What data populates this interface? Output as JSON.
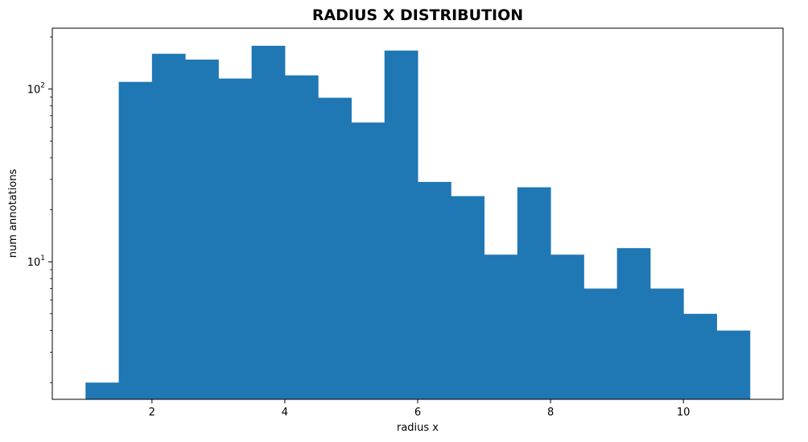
{
  "chart_data": {
    "type": "bar",
    "title": "RADIUS X DISTRIBUTION",
    "xlabel": "radius x",
    "ylabel": "num annotations",
    "yscale": "log",
    "grid": false,
    "bar_color": "#1f77b4",
    "bins": [
      {
        "x0": 1.0,
        "x1": 1.5,
        "value": 2
      },
      {
        "x0": 1.5,
        "x1": 2.0,
        "value": 110
      },
      {
        "x0": 2.0,
        "x1": 2.5,
        "value": 160
      },
      {
        "x0": 2.5,
        "x1": 3.0,
        "value": 148
      },
      {
        "x0": 3.0,
        "x1": 3.5,
        "value": 115
      },
      {
        "x0": 3.5,
        "x1": 4.0,
        "value": 178
      },
      {
        "x0": 4.0,
        "x1": 4.5,
        "value": 120
      },
      {
        "x0": 4.5,
        "x1": 5.0,
        "value": 89
      },
      {
        "x0": 5.0,
        "x1": 5.5,
        "value": 64
      },
      {
        "x0": 5.5,
        "x1": 6.0,
        "value": 167
      },
      {
        "x0": 6.0,
        "x1": 6.5,
        "value": 29
      },
      {
        "x0": 6.5,
        "x1": 7.0,
        "value": 24
      },
      {
        "x0": 7.0,
        "x1": 7.5,
        "value": 11
      },
      {
        "x0": 7.5,
        "x1": 8.0,
        "value": 27
      },
      {
        "x0": 8.0,
        "x1": 8.5,
        "value": 11
      },
      {
        "x0": 8.5,
        "x1": 9.0,
        "value": 7
      },
      {
        "x0": 9.0,
        "x1": 9.5,
        "value": 12
      },
      {
        "x0": 9.5,
        "x1": 10.0,
        "value": 7
      },
      {
        "x0": 10.0,
        "x1": 10.5,
        "value": 5
      },
      {
        "x0": 10.5,
        "x1": 11.0,
        "value": 4
      }
    ],
    "xlim": [
      0.5,
      11.5
    ],
    "ylim": [
      1.6,
      225
    ],
    "x_ticks": [
      2,
      4,
      6,
      8,
      10
    ],
    "x_tick_labels": [
      "2",
      "4",
      "6",
      "8",
      "10"
    ],
    "y_major_ticks": [
      {
        "value": 10,
        "base": "10",
        "exp": "1"
      },
      {
        "value": 100,
        "base": "10",
        "exp": "2"
      }
    ],
    "y_minor_ticks": [
      2,
      3,
      4,
      5,
      6,
      7,
      8,
      9,
      20,
      30,
      40,
      50,
      60,
      70,
      80,
      90,
      200
    ]
  }
}
